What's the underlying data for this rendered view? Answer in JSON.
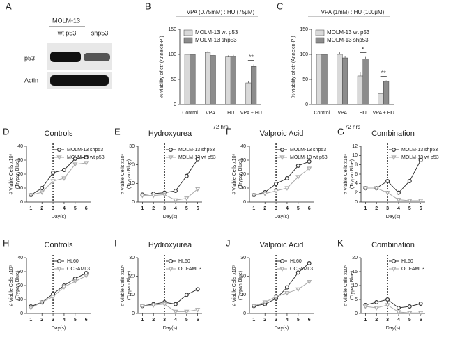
{
  "blot": {
    "panel": "A",
    "cell_line": "MOLM-13",
    "lanes": [
      "wt p53",
      "shp53"
    ],
    "rows": [
      "p53",
      "Actin"
    ]
  },
  "chart_data": [
    {
      "type": "bar",
      "panel": "B",
      "title": "VPA (0.75mM) : HU (75μM)",
      "ylabel": "% viability of ctr (Annexin-PI)",
      "xlabel": "72 hrs",
      "categories": [
        "Control",
        "VPA",
        "HU",
        "VPA + HU"
      ],
      "ylim": [
        0,
        150
      ],
      "yticks": [
        0,
        50,
        100,
        150
      ],
      "legend": "upper left",
      "series": [
        {
          "name": "MOLM-13 wt p53",
          "color": "#d9d9d9",
          "values": [
            100,
            104,
            95,
            43
          ],
          "errors": [
            0,
            2,
            3,
            4
          ]
        },
        {
          "name": "MOLM-13 shp53",
          "color": "#8c8c8c",
          "values": [
            100,
            98,
            96,
            76
          ],
          "errors": [
            0,
            3,
            3,
            4
          ]
        }
      ],
      "annotations": [
        "**"
      ]
    },
    {
      "type": "bar",
      "panel": "C",
      "title": "VPA (1mM) : HU (100μM)",
      "ylabel": "% viability of ctr (Annexin-PI)",
      "xlabel": "72 hrs",
      "categories": [
        "Control",
        "VPA",
        "HU",
        "VPA + HU"
      ],
      "ylim": [
        0,
        150
      ],
      "yticks": [
        0,
        50,
        100,
        150
      ],
      "legend": "upper left",
      "series": [
        {
          "name": "MOLM-13 wt p53",
          "color": "#d9d9d9",
          "values": [
            100,
            100,
            57,
            22
          ],
          "errors": [
            0,
            4,
            7,
            1
          ]
        },
        {
          "name": "MOLM-13 shp53",
          "color": "#8c8c8c",
          "values": [
            100,
            93,
            91,
            46
          ],
          "errors": [
            0,
            3,
            4,
            2
          ]
        }
      ],
      "annotations": [
        "*",
        "**"
      ]
    },
    {
      "type": "line",
      "panel": "D",
      "title": "Controls",
      "ylabel": "# Viable Cells x10⁵",
      "ylabel2": "(Trypan Blue)",
      "xlabel": "Day(s)",
      "x": [
        1,
        2,
        3,
        4,
        5,
        6
      ],
      "xlim": [
        0.6,
        6.4
      ],
      "xticks": [
        1,
        2,
        3,
        4,
        5,
        6
      ],
      "ylim": [
        0,
        40
      ],
      "yticks": [
        0,
        10,
        20,
        30,
        40
      ],
      "vline": 3,
      "legend": "upper right",
      "series": [
        {
          "name": "MOLM-13 shp53",
          "color": "#333333",
          "marker": "circle",
          "values": [
            5,
            10,
            21,
            23,
            31,
            32
          ]
        },
        {
          "name": "MOLM-13 wt p53",
          "color": "#aaaaaa",
          "marker": "triangle",
          "values": [
            5,
            7,
            15,
            17,
            27,
            28
          ]
        }
      ]
    },
    {
      "type": "line",
      "panel": "E",
      "title": "Hydroxyurea",
      "ylabel": "# Viable Cells x10⁵",
      "ylabel2": "(Trypan Blue)",
      "xlabel": "Day(s)",
      "x": [
        1,
        2,
        3,
        4,
        5,
        6
      ],
      "xlim": [
        0.6,
        6.4
      ],
      "xticks": [
        1,
        2,
        3,
        4,
        5,
        6
      ],
      "ylim": [
        0,
        30
      ],
      "yticks": [
        0,
        10,
        20,
        30
      ],
      "vline": 3,
      "legend": "upper right",
      "series": [
        {
          "name": "MOLM-13 shp53",
          "color": "#333333",
          "marker": "circle",
          "values": [
            4,
            4.5,
            5,
            6,
            14,
            23
          ]
        },
        {
          "name": "MOLM-13 wt p53",
          "color": "#aaaaaa",
          "marker": "triangle",
          "values": [
            3.5,
            3.5,
            4,
            1,
            2,
            7
          ]
        }
      ]
    },
    {
      "type": "line",
      "panel": "F",
      "title": "Valproic Acid",
      "ylabel": "# Viable Cells x10⁵",
      "ylabel2": "(Trypan Blue)",
      "xlabel": "Day(s)",
      "x": [
        1,
        2,
        3,
        4,
        5,
        6
      ],
      "xlim": [
        0.6,
        6.4
      ],
      "xticks": [
        1,
        2,
        3,
        4,
        5,
        6
      ],
      "ylim": [
        0,
        40
      ],
      "yticks": [
        0,
        10,
        20,
        30,
        40
      ],
      "vline": 3,
      "legend": "upper right",
      "series": [
        {
          "name": "MOLM-13 shp53",
          "color": "#333333",
          "marker": "circle",
          "values": [
            5,
            7,
            13,
            17,
            26,
            29
          ]
        },
        {
          "name": "MOLM-13 wt p53",
          "color": "#aaaaaa",
          "marker": "triangle",
          "values": [
            5,
            6,
            8,
            10,
            18,
            24
          ]
        }
      ]
    },
    {
      "type": "line",
      "panel": "G",
      "title": "Combination",
      "ylabel": "# Viable Cells x10⁵",
      "ylabel2": "(Trypan Blue)",
      "xlabel": "Day(s)",
      "x": [
        1,
        2,
        3,
        4,
        5,
        6
      ],
      "xlim": [
        0.6,
        6.4
      ],
      "xticks": [
        1,
        2,
        3,
        4,
        5,
        6
      ],
      "ylim": [
        0,
        12
      ],
      "yticks": [
        0,
        2,
        4,
        6,
        8,
        10,
        12
      ],
      "vline": 3,
      "legend": "upper right",
      "series": [
        {
          "name": "MOLM-13 shp53",
          "color": "#333333",
          "marker": "circle",
          "values": [
            3,
            3,
            4.5,
            2,
            4.5,
            9
          ]
        },
        {
          "name": "MOLM-13 wt p53",
          "color": "#aaaaaa",
          "marker": "triangle",
          "values": [
            3,
            3,
            2,
            0.5,
            0.3,
            0.3
          ]
        }
      ]
    },
    {
      "type": "line",
      "panel": "H",
      "title": "Controls",
      "ylabel": "# Viable Cells x10⁵",
      "ylabel2": "(Trypan Blue)",
      "xlabel": "Day(s)",
      "x": [
        1,
        2,
        3,
        4,
        5,
        6
      ],
      "xlim": [
        0.6,
        6.4
      ],
      "xticks": [
        1,
        2,
        3,
        4,
        5,
        6
      ],
      "ylim": [
        0,
        40
      ],
      "yticks": [
        0,
        10,
        20,
        30,
        40
      ],
      "vline": 3,
      "legend": "upper right",
      "series": [
        {
          "name": "HL60",
          "color": "#333333",
          "marker": "circle",
          "values": [
            5,
            8,
            14,
            20,
            25,
            29
          ]
        },
        {
          "name": "OCI-AML3",
          "color": "#aaaaaa",
          "marker": "triangle",
          "values": [
            4,
            8,
            12,
            19,
            23,
            27
          ]
        }
      ]
    },
    {
      "type": "line",
      "panel": "I",
      "title": "Hydroxyurea",
      "ylabel": "# Viable Cells x10⁵",
      "ylabel2": "(Trypan Blue)",
      "xlabel": "Day(s)",
      "x": [
        1,
        2,
        3,
        4,
        5,
        6
      ],
      "xlim": [
        0.6,
        6.4
      ],
      "xticks": [
        1,
        2,
        3,
        4,
        5,
        6
      ],
      "ylim": [
        0,
        30
      ],
      "yticks": [
        0,
        10,
        20,
        30
      ],
      "vline": 3,
      "legend": "upper right",
      "series": [
        {
          "name": "HL60",
          "color": "#333333",
          "marker": "circle",
          "values": [
            4,
            5,
            6,
            5,
            10,
            13
          ]
        },
        {
          "name": "OCI-AML3",
          "color": "#aaaaaa",
          "marker": "triangle",
          "values": [
            4,
            4.5,
            5,
            1,
            1,
            2
          ]
        }
      ]
    },
    {
      "type": "line",
      "panel": "J",
      "title": "Valproic Acid",
      "ylabel": "# Viable Cells x10⁵",
      "ylabel2": "(Trypan Blue)",
      "xlabel": "Day(s)",
      "x": [
        1,
        2,
        3,
        4,
        5,
        6
      ],
      "xlim": [
        0.6,
        6.4
      ],
      "xticks": [
        1,
        2,
        3,
        4,
        5,
        6
      ],
      "ylim": [
        0,
        30
      ],
      "yticks": [
        0,
        10,
        20,
        30
      ],
      "vline": 3,
      "legend": "upper right",
      "series": [
        {
          "name": "HL60",
          "color": "#333333",
          "marker": "circle",
          "values": [
            4,
            5,
            8,
            14,
            22,
            27
          ]
        },
        {
          "name": "OCI-AML3",
          "color": "#aaaaaa",
          "marker": "triangle",
          "values": [
            4,
            6,
            9,
            11,
            13,
            17
          ]
        }
      ]
    },
    {
      "type": "line",
      "panel": "K",
      "title": "Combination",
      "ylabel": "# Viable Cells x10⁵",
      "ylabel2": "(Trypan Blue)",
      "xlabel": "Day(s)",
      "x": [
        1,
        2,
        3,
        4,
        5,
        6
      ],
      "xlim": [
        0.6,
        6.4
      ],
      "xticks": [
        1,
        2,
        3,
        4,
        5,
        6
      ],
      "ylim": [
        0,
        20
      ],
      "yticks": [
        0,
        5,
        10,
        15,
        20
      ],
      "vline": 3,
      "legend": "upper right",
      "series": [
        {
          "name": "HL60",
          "color": "#333333",
          "marker": "circle",
          "values": [
            3,
            4,
            5,
            2,
            2.5,
            3.5
          ]
        },
        {
          "name": "OCI-AML3",
          "color": "#aaaaaa",
          "marker": "triangle",
          "values": [
            2.5,
            2,
            3,
            0.5,
            0.2,
            0.2
          ]
        }
      ]
    }
  ]
}
